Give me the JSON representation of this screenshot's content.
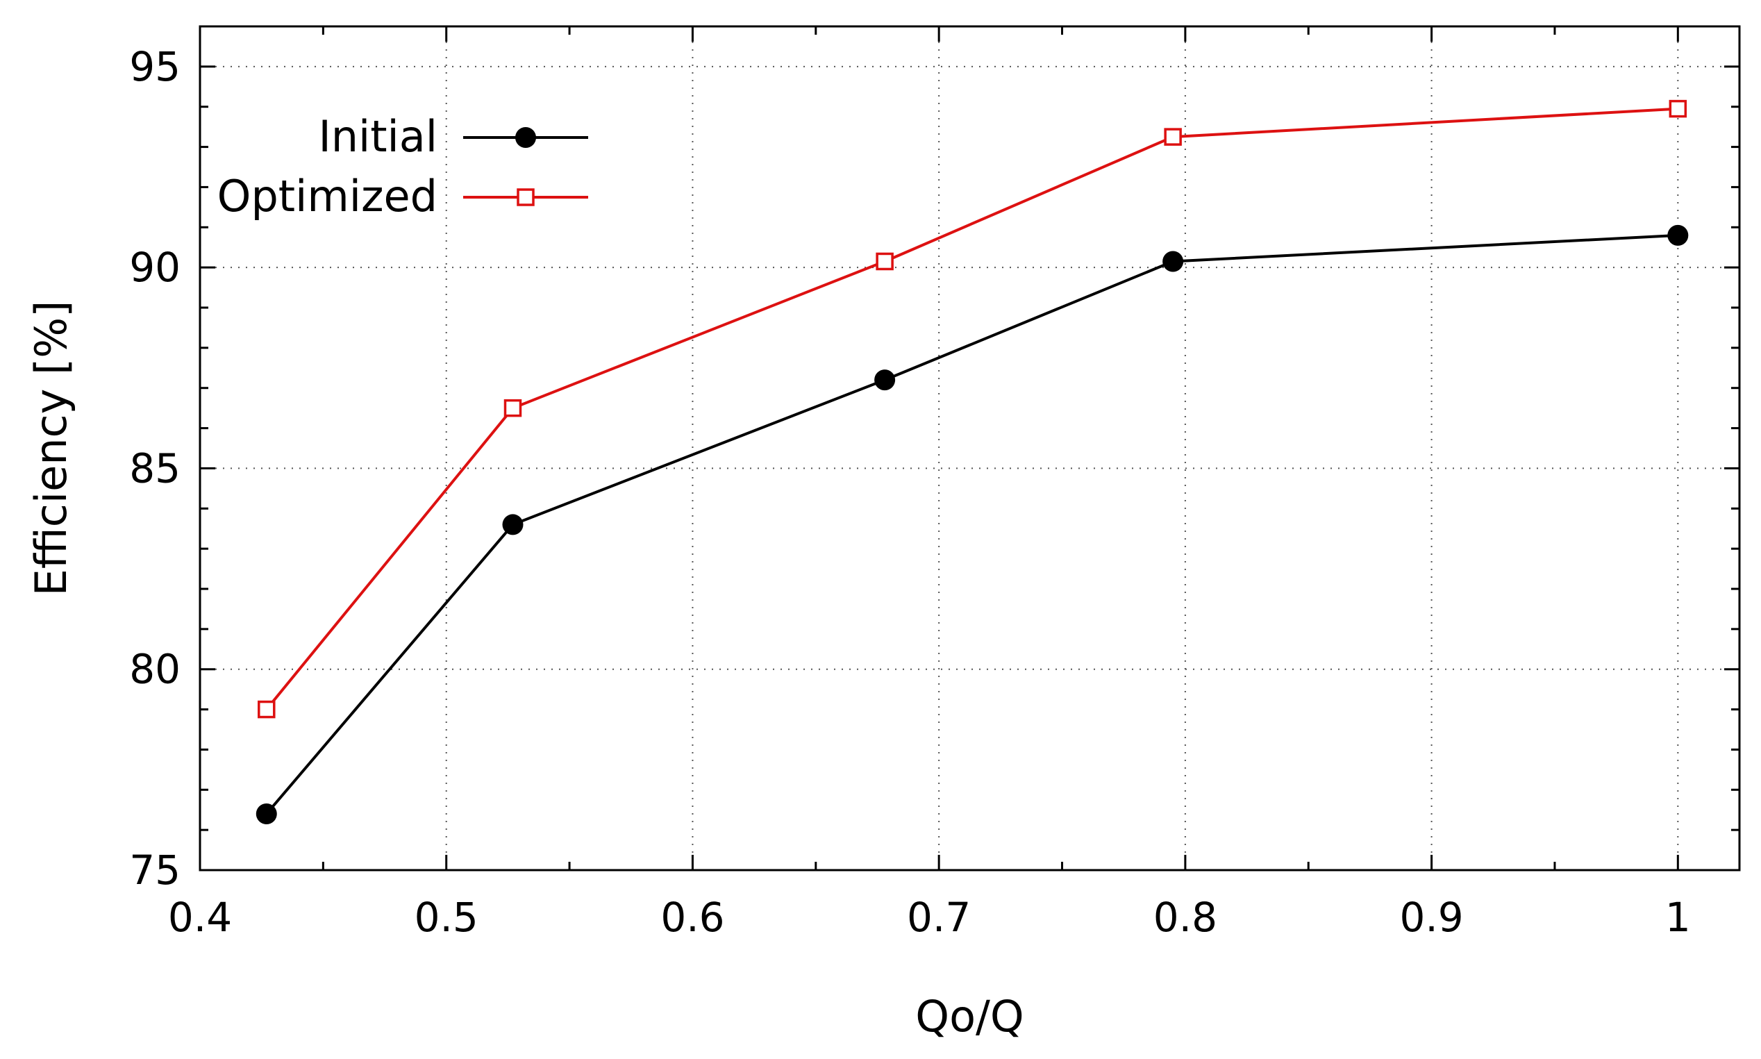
{
  "chart_data": {
    "type": "line",
    "title": "",
    "xlabel": "Qo/Q",
    "ylabel": "Efficiency [%]",
    "xlim": [
      0.4,
      1.025
    ],
    "ylim": [
      75,
      96
    ],
    "xticks": [
      "0.4",
      "0.5",
      "0.6",
      "0.7",
      "0.8",
      "0.9",
      "1"
    ],
    "yticks": [
      "75",
      "80",
      "85",
      "90",
      "95"
    ],
    "grid": true,
    "legend_position": "top-left",
    "series": [
      {
        "name": "Initial",
        "color": "#000000",
        "marker": "filled-circle",
        "x": [
          0.427,
          0.527,
          0.678,
          0.795,
          1.0
        ],
        "y": [
          76.4,
          83.6,
          87.2,
          90.15,
          90.8
        ]
      },
      {
        "name": "Optimized",
        "color": "#dd1111",
        "marker": "open-square",
        "x": [
          0.427,
          0.527,
          0.678,
          0.795,
          1.0
        ],
        "y": [
          79.0,
          86.5,
          90.15,
          93.25,
          93.95
        ]
      }
    ]
  }
}
